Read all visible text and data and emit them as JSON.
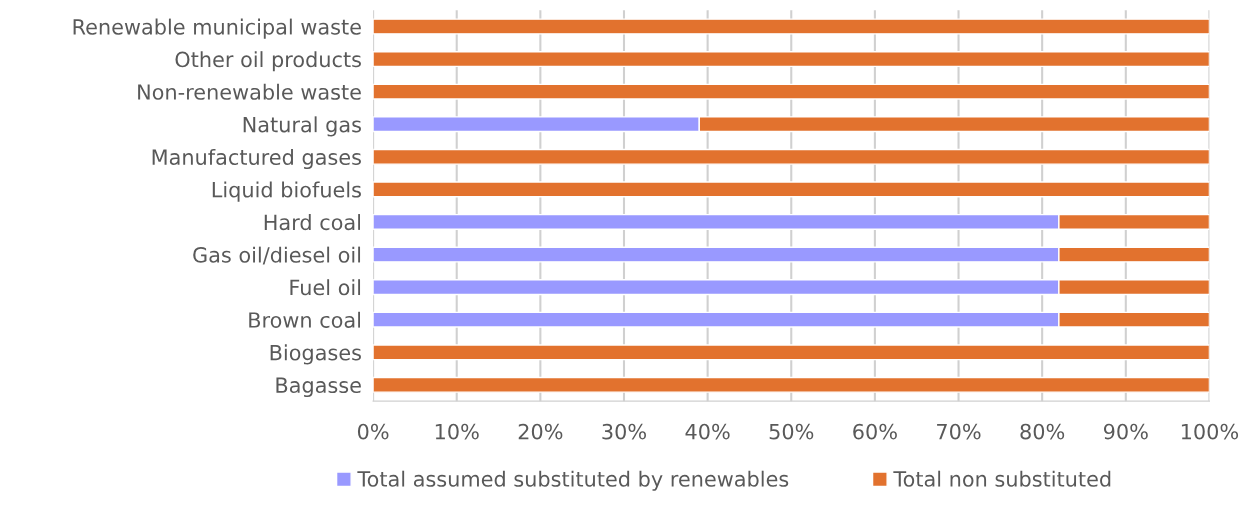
{
  "chart_data": {
    "type": "bar",
    "orientation": "horizontal",
    "stacked": true,
    "categories": [
      "Renewable municipal waste",
      "Other oil products",
      "Non-renewable waste",
      "Natural gas",
      "Manufactured gases",
      "Liquid biofuels",
      "Hard coal",
      "Gas oil/diesel oil",
      "Fuel oil",
      "Brown coal",
      "Biogases",
      "Bagasse"
    ],
    "series": [
      {
        "name": "Total assumed substituted by renewables",
        "color": "#9999ff",
        "values": [
          0,
          0,
          0,
          39,
          0,
          0,
          82,
          82,
          82,
          82,
          0,
          0
        ]
      },
      {
        "name": "Total non substituted",
        "color": "#e2722e",
        "values": [
          100,
          100,
          100,
          61,
          100,
          100,
          18,
          18,
          18,
          18,
          100,
          100
        ]
      }
    ],
    "xlim": [
      0,
      100
    ],
    "xticks": [
      {
        "value": 0,
        "label": "0%"
      },
      {
        "value": 10,
        "label": "10%"
      },
      {
        "value": 20,
        "label": "20%"
      },
      {
        "value": 30,
        "label": "30%"
      },
      {
        "value": 40,
        "label": "40%"
      },
      {
        "value": 50,
        "label": "50%"
      },
      {
        "value": 60,
        "label": "60%"
      },
      {
        "value": 70,
        "label": "70%"
      },
      {
        "value": 80,
        "label": "80%"
      },
      {
        "value": 90,
        "label": "90%"
      },
      {
        "value": 100,
        "label": "100%"
      }
    ],
    "grid": "x",
    "legend": "bottom"
  }
}
